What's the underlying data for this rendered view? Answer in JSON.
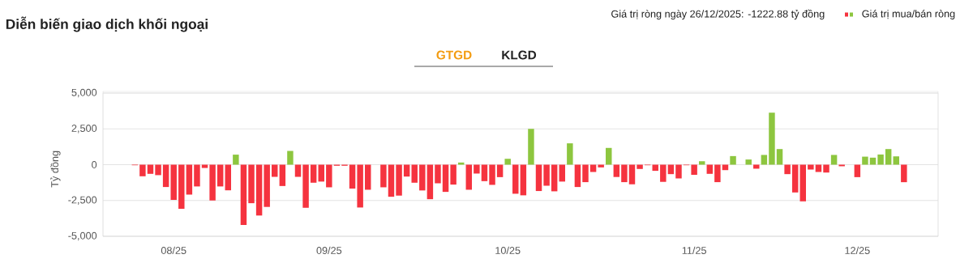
{
  "chart_data": {
    "type": "bar",
    "title": "Diễn biến giao dịch khối ngoại",
    "ylabel": "Tỷ đồng",
    "annotations": [
      "Giá trị ròng ngày 26/12/2025: -1222.88 tỷ đồng",
      "GTGD",
      "KLGD"
    ],
    "categories": [
      null,
      null,
      null,
      null,
      null,
      "08/25",
      null,
      null,
      null,
      null,
      null,
      null,
      null,
      null,
      null,
      null,
      null,
      null,
      null,
      null,
      null,
      null,
      null,
      null,
      null,
      "09/25",
      null,
      null,
      null,
      null,
      null,
      null,
      null,
      null,
      null,
      null,
      null,
      null,
      null,
      null,
      null,
      null,
      null,
      null,
      null,
      null,
      null,
      null,
      "10/25",
      null,
      null,
      null,
      null,
      null,
      null,
      null,
      null,
      null,
      null,
      null,
      null,
      null,
      null,
      null,
      null,
      null,
      null,
      null,
      null,
      null,
      null,
      null,
      "11/25",
      null,
      null,
      null,
      null,
      null,
      null,
      null,
      null,
      null,
      null,
      null,
      null,
      null,
      null,
      null,
      null,
      null,
      null,
      null,
      null,
      "12/25",
      null,
      null,
      null,
      null,
      null,
      null
    ],
    "series": [
      {
        "name": "Giá trị mua/bán ròng",
        "values": [
          -40,
          -810,
          -640,
          -730,
          -1560,
          -2460,
          -3080,
          -2090,
          -1520,
          -230,
          -2500,
          -1520,
          -1790,
          700,
          -4210,
          -2690,
          -3550,
          -2950,
          -850,
          -1490,
          960,
          -850,
          -3010,
          -1260,
          -1180,
          -1580,
          -75,
          -75,
          -1670,
          -2990,
          -1750,
          null,
          -1580,
          -2240,
          -2160,
          -830,
          -1260,
          -1800,
          -2410,
          -1300,
          -1900,
          -1390,
          150,
          -1750,
          -620,
          -1150,
          -1410,
          -870,
          410,
          -2030,
          -2140,
          2500,
          -1840,
          -1470,
          -1860,
          -1180,
          1490,
          -1560,
          -1220,
          -510,
          -190,
          1170,
          -860,
          -1220,
          -1370,
          -300,
          -40,
          -430,
          -1200,
          -660,
          -960,
          -40,
          -710,
          240,
          -640,
          -1220,
          -380,
          600,
          null,
          360,
          -280,
          680,
          3630,
          1090,
          -660,
          -1940,
          -2560,
          -340,
          -510,
          -550,
          680,
          -110,
          null,
          -870,
          560,
          490,
          710,
          1090,
          580,
          -1222.88
        ],
        "colors": [
          "#f5333f",
          "#f5333f",
          "#f5333f",
          "#f5333f",
          "#f5333f",
          "#f5333f",
          "#f5333f",
          "#f5333f",
          "#f5333f",
          "#f5333f",
          "#f5333f",
          "#f5333f",
          "#f5333f",
          "#8dc63f",
          "#f5333f",
          "#f5333f",
          "#f5333f",
          "#f5333f",
          "#f5333f",
          "#f5333f",
          "#8dc63f",
          "#f5333f",
          "#f5333f",
          "#f5333f",
          "#f5333f",
          "#f5333f",
          "#f5333f",
          "#f5333f",
          "#f5333f",
          "#f5333f",
          "#f5333f",
          null,
          "#f5333f",
          "#f5333f",
          "#f5333f",
          "#f5333f",
          "#f5333f",
          "#f5333f",
          "#f5333f",
          "#f5333f",
          "#f5333f",
          "#f5333f",
          "#8dc63f",
          "#f5333f",
          "#f5333f",
          "#f5333f",
          "#f5333f",
          "#f5333f",
          "#8dc63f",
          "#f5333f",
          "#f5333f",
          "#8dc63f",
          "#f5333f",
          "#f5333f",
          "#f5333f",
          "#f5333f",
          "#8dc63f",
          "#f5333f",
          "#f5333f",
          "#f5333f",
          "#f5333f",
          "#8dc63f",
          "#f5333f",
          "#f5333f",
          "#f5333f",
          "#f5333f",
          "#f5333f",
          "#f5333f",
          "#f5333f",
          "#f5333f",
          "#f5333f",
          "#f5333f",
          "#f5333f",
          "#8dc63f",
          "#f5333f",
          "#f5333f",
          "#f5333f",
          "#8dc63f",
          null,
          "#8dc63f",
          "#f5333f",
          "#8dc63f",
          "#8dc63f",
          "#8dc63f",
          "#f5333f",
          "#f5333f",
          "#f5333f",
          "#f5333f",
          "#f5333f",
          "#f5333f",
          "#8dc63f",
          "#f5333f",
          null,
          "#f5333f",
          "#8dc63f",
          "#8dc63f",
          "#8dc63f",
          "#8dc63f",
          "#8dc63f",
          "#f5333f"
        ]
      }
    ],
    "ylim": [
      -5000,
      5000
    ],
    "yticks": [
      {
        "value": -5000,
        "label": "-5,000"
      },
      {
        "value": -2500,
        "label": "-2,500"
      },
      0,
      {
        "value": 2500,
        "label": "2,500"
      },
      {
        "value": 5000,
        "label": "5,000"
      }
    ],
    "grid": "y",
    "legend": "top right"
  }
}
